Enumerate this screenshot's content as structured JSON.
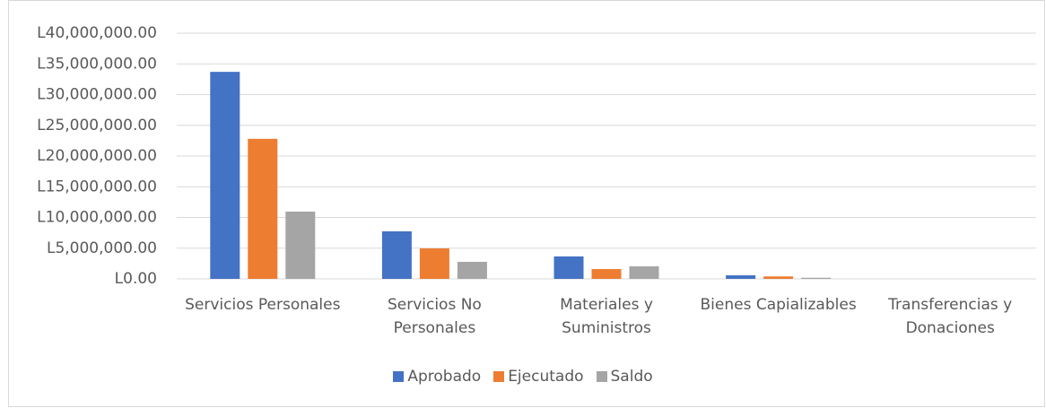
{
  "chart_data": {
    "type": "bar",
    "categories": [
      "Servicios Personales",
      "Servicios No Personales",
      "Materiales y Suministros",
      "Bienes Capializables",
      "Transferencias y Donaciones"
    ],
    "series": [
      {
        "name": "Aprobado",
        "color": "#4472c4",
        "values": [
          33700000,
          7740000,
          3650000,
          580000,
          0
        ]
      },
      {
        "name": "Ejecutado",
        "color": "#ed7d31",
        "values": [
          22800000,
          4960000,
          1600000,
          400000,
          0
        ]
      },
      {
        "name": "Saldo",
        "color": "#a5a5a5",
        "values": [
          10950000,
          2770000,
          2040000,
          180000,
          0
        ]
      }
    ],
    "ylim": [
      0,
      40000000
    ],
    "yticks": [
      {
        "value": 0,
        "label": "L0.00"
      },
      {
        "value": 5000000,
        "label": "L5,000,000.00"
      },
      {
        "value": 10000000,
        "label": "L10,000,000.00"
      },
      {
        "value": 15000000,
        "label": "L15,000,000.00"
      },
      {
        "value": 20000000,
        "label": "L20,000,000.00"
      },
      {
        "value": 25000000,
        "label": "L25,000,000.00"
      },
      {
        "value": 30000000,
        "label": "L30,000,000.00"
      },
      {
        "value": 35000000,
        "label": "L35,000,000.00"
      },
      {
        "value": 40000000,
        "label": "L40,000,000.00"
      }
    ],
    "grid": true,
    "legend": "bottom"
  }
}
